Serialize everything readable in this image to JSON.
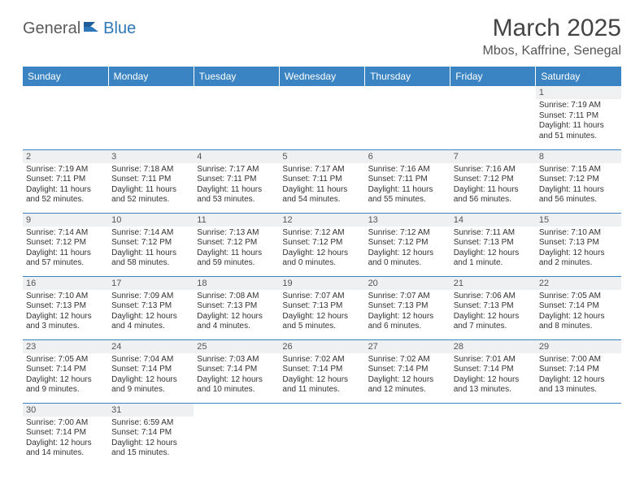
{
  "colors": {
    "header_bg": "#3b84c4",
    "header_text": "#ffffff",
    "daynum_bg": "#eef0f1",
    "daynum_text": "#555555",
    "cell_border": "#3b84c4",
    "body_text": "#333333",
    "logo_gray": "#5a5a5a",
    "logo_blue": "#2e77b8"
  },
  "logo": {
    "general": "General",
    "blue": "Blue"
  },
  "title": "March 2025",
  "location": "Mbos, Kaffrine, Senegal",
  "weekdays": [
    "Sunday",
    "Monday",
    "Tuesday",
    "Wednesday",
    "Thursday",
    "Friday",
    "Saturday"
  ],
  "weeks": [
    [
      null,
      null,
      null,
      null,
      null,
      null,
      {
        "n": "1",
        "sr": "Sunrise: 7:19 AM",
        "ss": "Sunset: 7:11 PM",
        "d1": "Daylight: 11 hours",
        "d2": "and 51 minutes."
      }
    ],
    [
      {
        "n": "2",
        "sr": "Sunrise: 7:19 AM",
        "ss": "Sunset: 7:11 PM",
        "d1": "Daylight: 11 hours",
        "d2": "and 52 minutes."
      },
      {
        "n": "3",
        "sr": "Sunrise: 7:18 AM",
        "ss": "Sunset: 7:11 PM",
        "d1": "Daylight: 11 hours",
        "d2": "and 52 minutes."
      },
      {
        "n": "4",
        "sr": "Sunrise: 7:17 AM",
        "ss": "Sunset: 7:11 PM",
        "d1": "Daylight: 11 hours",
        "d2": "and 53 minutes."
      },
      {
        "n": "5",
        "sr": "Sunrise: 7:17 AM",
        "ss": "Sunset: 7:11 PM",
        "d1": "Daylight: 11 hours",
        "d2": "and 54 minutes."
      },
      {
        "n": "6",
        "sr": "Sunrise: 7:16 AM",
        "ss": "Sunset: 7:11 PM",
        "d1": "Daylight: 11 hours",
        "d2": "and 55 minutes."
      },
      {
        "n": "7",
        "sr": "Sunrise: 7:16 AM",
        "ss": "Sunset: 7:12 PM",
        "d1": "Daylight: 11 hours",
        "d2": "and 56 minutes."
      },
      {
        "n": "8",
        "sr": "Sunrise: 7:15 AM",
        "ss": "Sunset: 7:12 PM",
        "d1": "Daylight: 11 hours",
        "d2": "and 56 minutes."
      }
    ],
    [
      {
        "n": "9",
        "sr": "Sunrise: 7:14 AM",
        "ss": "Sunset: 7:12 PM",
        "d1": "Daylight: 11 hours",
        "d2": "and 57 minutes."
      },
      {
        "n": "10",
        "sr": "Sunrise: 7:14 AM",
        "ss": "Sunset: 7:12 PM",
        "d1": "Daylight: 11 hours",
        "d2": "and 58 minutes."
      },
      {
        "n": "11",
        "sr": "Sunrise: 7:13 AM",
        "ss": "Sunset: 7:12 PM",
        "d1": "Daylight: 11 hours",
        "d2": "and 59 minutes."
      },
      {
        "n": "12",
        "sr": "Sunrise: 7:12 AM",
        "ss": "Sunset: 7:12 PM",
        "d1": "Daylight: 12 hours",
        "d2": "and 0 minutes."
      },
      {
        "n": "13",
        "sr": "Sunrise: 7:12 AM",
        "ss": "Sunset: 7:12 PM",
        "d1": "Daylight: 12 hours",
        "d2": "and 0 minutes."
      },
      {
        "n": "14",
        "sr": "Sunrise: 7:11 AM",
        "ss": "Sunset: 7:13 PM",
        "d1": "Daylight: 12 hours",
        "d2": "and 1 minute."
      },
      {
        "n": "15",
        "sr": "Sunrise: 7:10 AM",
        "ss": "Sunset: 7:13 PM",
        "d1": "Daylight: 12 hours",
        "d2": "and 2 minutes."
      }
    ],
    [
      {
        "n": "16",
        "sr": "Sunrise: 7:10 AM",
        "ss": "Sunset: 7:13 PM",
        "d1": "Daylight: 12 hours",
        "d2": "and 3 minutes."
      },
      {
        "n": "17",
        "sr": "Sunrise: 7:09 AM",
        "ss": "Sunset: 7:13 PM",
        "d1": "Daylight: 12 hours",
        "d2": "and 4 minutes."
      },
      {
        "n": "18",
        "sr": "Sunrise: 7:08 AM",
        "ss": "Sunset: 7:13 PM",
        "d1": "Daylight: 12 hours",
        "d2": "and 4 minutes."
      },
      {
        "n": "19",
        "sr": "Sunrise: 7:07 AM",
        "ss": "Sunset: 7:13 PM",
        "d1": "Daylight: 12 hours",
        "d2": "and 5 minutes."
      },
      {
        "n": "20",
        "sr": "Sunrise: 7:07 AM",
        "ss": "Sunset: 7:13 PM",
        "d1": "Daylight: 12 hours",
        "d2": "and 6 minutes."
      },
      {
        "n": "21",
        "sr": "Sunrise: 7:06 AM",
        "ss": "Sunset: 7:13 PM",
        "d1": "Daylight: 12 hours",
        "d2": "and 7 minutes."
      },
      {
        "n": "22",
        "sr": "Sunrise: 7:05 AM",
        "ss": "Sunset: 7:14 PM",
        "d1": "Daylight: 12 hours",
        "d2": "and 8 minutes."
      }
    ],
    [
      {
        "n": "23",
        "sr": "Sunrise: 7:05 AM",
        "ss": "Sunset: 7:14 PM",
        "d1": "Daylight: 12 hours",
        "d2": "and 9 minutes."
      },
      {
        "n": "24",
        "sr": "Sunrise: 7:04 AM",
        "ss": "Sunset: 7:14 PM",
        "d1": "Daylight: 12 hours",
        "d2": "and 9 minutes."
      },
      {
        "n": "25",
        "sr": "Sunrise: 7:03 AM",
        "ss": "Sunset: 7:14 PM",
        "d1": "Daylight: 12 hours",
        "d2": "and 10 minutes."
      },
      {
        "n": "26",
        "sr": "Sunrise: 7:02 AM",
        "ss": "Sunset: 7:14 PM",
        "d1": "Daylight: 12 hours",
        "d2": "and 11 minutes."
      },
      {
        "n": "27",
        "sr": "Sunrise: 7:02 AM",
        "ss": "Sunset: 7:14 PM",
        "d1": "Daylight: 12 hours",
        "d2": "and 12 minutes."
      },
      {
        "n": "28",
        "sr": "Sunrise: 7:01 AM",
        "ss": "Sunset: 7:14 PM",
        "d1": "Daylight: 12 hours",
        "d2": "and 13 minutes."
      },
      {
        "n": "29",
        "sr": "Sunrise: 7:00 AM",
        "ss": "Sunset: 7:14 PM",
        "d1": "Daylight: 12 hours",
        "d2": "and 13 minutes."
      }
    ],
    [
      {
        "n": "30",
        "sr": "Sunrise: 7:00 AM",
        "ss": "Sunset: 7:14 PM",
        "d1": "Daylight: 12 hours",
        "d2": "and 14 minutes."
      },
      {
        "n": "31",
        "sr": "Sunrise: 6:59 AM",
        "ss": "Sunset: 7:14 PM",
        "d1": "Daylight: 12 hours",
        "d2": "and 15 minutes."
      },
      null,
      null,
      null,
      null,
      null
    ]
  ]
}
